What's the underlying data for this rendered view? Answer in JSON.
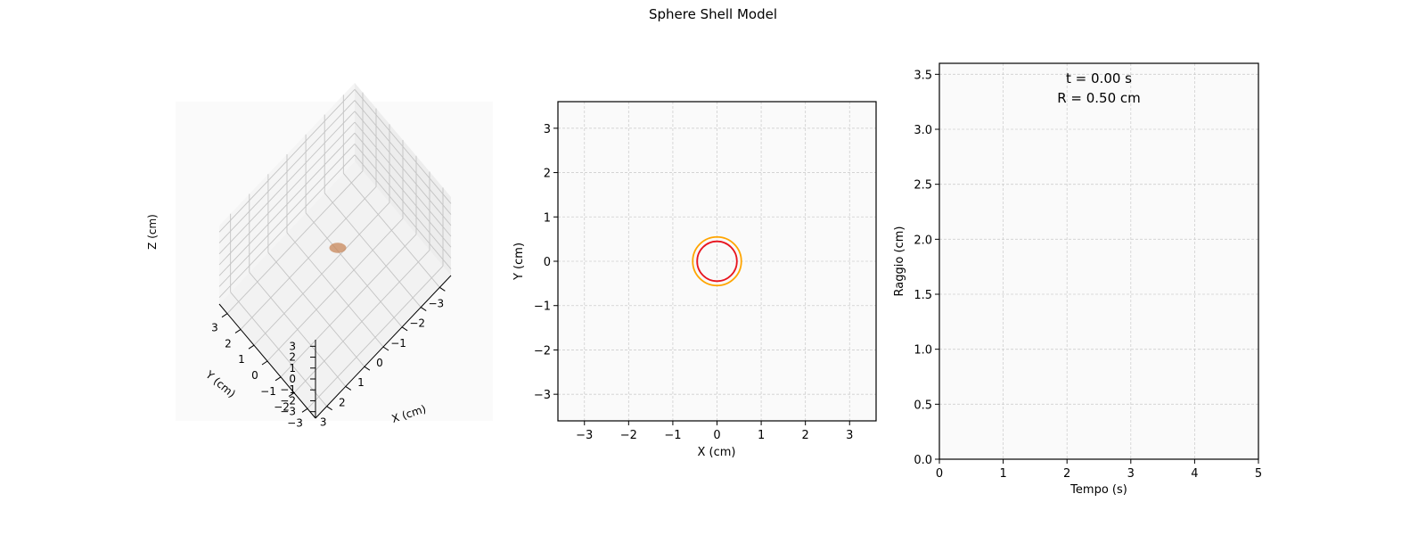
{
  "figure": {
    "title": "Sphere Shell Model"
  },
  "chart_data": [
    {
      "type": "scatter",
      "view": "3d-surface",
      "title": "",
      "xlabel": "X (cm)",
      "ylabel": "Y (cm)",
      "zlabel": "Z (cm)",
      "xlim": [
        -3.6,
        3.6
      ],
      "ylim": [
        -3.6,
        3.6
      ],
      "zlim": [
        -3.6,
        3.6
      ],
      "ticks": [
        -3,
        -2,
        -1,
        0,
        1,
        2,
        3
      ],
      "tick_labels": [
        "−3",
        "−2",
        "−1",
        "0",
        "1",
        "2",
        "3"
      ],
      "grid": true,
      "series": [
        {
          "shape": "sphere",
          "center": [
            0,
            0,
            0
          ],
          "radius": 0.5,
          "color": "#c8875a"
        }
      ]
    },
    {
      "type": "line",
      "view": "cross-section",
      "title": "",
      "xlabel": "X (cm)",
      "ylabel": "Y (cm)",
      "xlim": [
        -3.6,
        3.6
      ],
      "ylim": [
        -3.6,
        3.6
      ],
      "ticks": [
        -3,
        -2,
        -1,
        0,
        1,
        2,
        3
      ],
      "tick_labels": [
        "−3",
        "−2",
        "−1",
        "0",
        "1",
        "2",
        "3"
      ],
      "grid": true,
      "series": [
        {
          "shape": "circle",
          "center": [
            0,
            0
          ],
          "radius": 0.55,
          "color": "#ffa500"
        },
        {
          "shape": "circle",
          "center": [
            0,
            0
          ],
          "radius": 0.45,
          "color": "#e8161f"
        }
      ]
    },
    {
      "type": "line",
      "title": "",
      "xlabel": "Tempo (s)",
      "ylabel": "Raggio (cm)",
      "xlim": [
        0,
        5
      ],
      "ylim": [
        0,
        3.6
      ],
      "xticks": [
        0,
        1,
        2,
        3,
        4,
        5
      ],
      "xtick_labels": [
        "0",
        "1",
        "2",
        "3",
        "4",
        "5"
      ],
      "yticks": [
        0,
        0.5,
        1,
        1.5,
        2,
        2.5,
        3,
        3.5
      ],
      "ytick_labels": [
        "0.0",
        "0.5",
        "1.0",
        "1.5",
        "2.0",
        "2.5",
        "3.0",
        "3.5"
      ],
      "grid": true,
      "annotations": [
        "t = 0.00 s",
        "R = 0.50 cm"
      ],
      "series": []
    }
  ]
}
